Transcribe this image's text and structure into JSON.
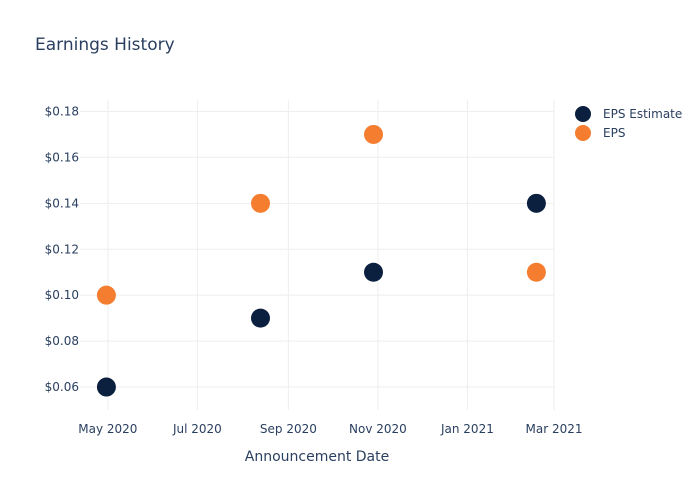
{
  "chart_data": {
    "type": "scatter",
    "title": "Earnings History",
    "xlabel": "Announcement Date",
    "ylabel": "",
    "x_axis_type": "date",
    "xlim": [
      "2020-04-12",
      "2021-03-01"
    ],
    "ylim": [
      0.05,
      0.185
    ],
    "x_ticks": [
      {
        "value": "2020-05-01",
        "label": "May 2020"
      },
      {
        "value": "2020-07-01",
        "label": "Jul 2020"
      },
      {
        "value": "2020-09-01",
        "label": "Sep 2020"
      },
      {
        "value": "2020-11-01",
        "label": "Nov 2020"
      },
      {
        "value": "2021-01-01",
        "label": "Jan 2021"
      },
      {
        "value": "2021-03-01",
        "label": "Mar 2021"
      }
    ],
    "y_ticks": [
      {
        "value": 0.06,
        "label": "$0.06"
      },
      {
        "value": 0.08,
        "label": "$0.08"
      },
      {
        "value": 0.1,
        "label": "$0.10"
      },
      {
        "value": 0.12,
        "label": "$0.12"
      },
      {
        "value": 0.14,
        "label": "$0.14"
      },
      {
        "value": 0.16,
        "label": "$0.16"
      },
      {
        "value": 0.18,
        "label": "$0.18"
      }
    ],
    "grid": true,
    "legend_position": "top-right",
    "series": [
      {
        "name": "EPS Estimate",
        "color": "#0b1f3f",
        "points": [
          {
            "x": "2020-04-30",
            "y": 0.06
          },
          {
            "x": "2020-08-13",
            "y": 0.09
          },
          {
            "x": "2020-10-29",
            "y": 0.11
          },
          {
            "x": "2021-02-17",
            "y": 0.14
          }
        ]
      },
      {
        "name": "EPS",
        "color": "#f47d30",
        "points": [
          {
            "x": "2020-04-30",
            "y": 0.1
          },
          {
            "x": "2020-08-13",
            "y": 0.14
          },
          {
            "x": "2020-10-29",
            "y": 0.17
          },
          {
            "x": "2021-02-17",
            "y": 0.11
          }
        ]
      }
    ]
  }
}
